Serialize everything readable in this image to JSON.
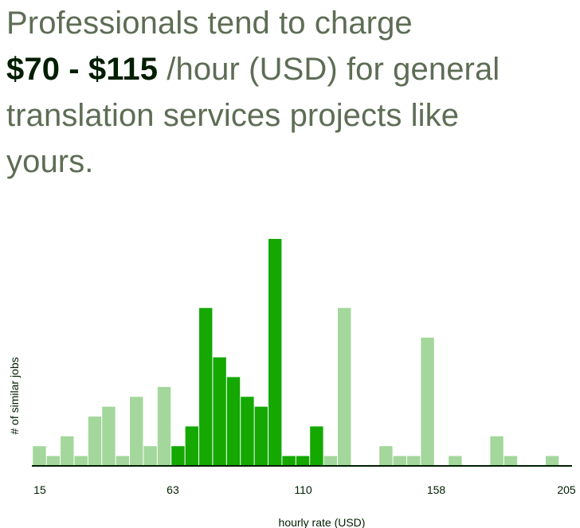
{
  "headline": {
    "line1": "Professionals tend to charge",
    "range": "$70 - $115",
    "rest1": " /hour (USD) for general",
    "line3": "translation services projects like",
    "line4": "yours."
  },
  "colors": {
    "in_range": "#14a800",
    "out_of_range": "#a3d79b",
    "headline_text": "#5e6d55",
    "range_text": "#001e00",
    "axis": "#001e00"
  },
  "chart_data": {
    "type": "bar",
    "title": "",
    "xlabel": "hourly rate (USD)",
    "ylabel": "# of similar jobs",
    "x_ticks": [
      15,
      63,
      110,
      158,
      205
    ],
    "xlim": [
      13,
      207
    ],
    "ylim": [
      0,
      23
    ],
    "highlight_range": [
      70,
      115
    ],
    "bin_width": 5,
    "bins": [
      {
        "x": 15,
        "count": 2,
        "in_range": false
      },
      {
        "x": 20,
        "count": 1,
        "in_range": false
      },
      {
        "x": 25,
        "count": 3,
        "in_range": false
      },
      {
        "x": 30,
        "count": 1,
        "in_range": false
      },
      {
        "x": 35,
        "count": 5,
        "in_range": false
      },
      {
        "x": 40,
        "count": 6,
        "in_range": false
      },
      {
        "x": 45,
        "count": 1,
        "in_range": false
      },
      {
        "x": 50,
        "count": 7,
        "in_range": false
      },
      {
        "x": 55,
        "count": 2,
        "in_range": false
      },
      {
        "x": 60,
        "count": 8,
        "in_range": false
      },
      {
        "x": 65,
        "count": 2,
        "in_range": true
      },
      {
        "x": 70,
        "count": 4,
        "in_range": true
      },
      {
        "x": 75,
        "count": 16,
        "in_range": true
      },
      {
        "x": 80,
        "count": 11,
        "in_range": true
      },
      {
        "x": 85,
        "count": 9,
        "in_range": true
      },
      {
        "x": 90,
        "count": 7,
        "in_range": true
      },
      {
        "x": 95,
        "count": 6,
        "in_range": true
      },
      {
        "x": 100,
        "count": 23,
        "in_range": true
      },
      {
        "x": 105,
        "count": 1,
        "in_range": true
      },
      {
        "x": 110,
        "count": 1,
        "in_range": true
      },
      {
        "x": 115,
        "count": 4,
        "in_range": true
      },
      {
        "x": 120,
        "count": 1,
        "in_range": false
      },
      {
        "x": 125,
        "count": 16,
        "in_range": false
      },
      {
        "x": 130,
        "count": 0,
        "in_range": false
      },
      {
        "x": 140,
        "count": 2,
        "in_range": false
      },
      {
        "x": 145,
        "count": 1,
        "in_range": false
      },
      {
        "x": 150,
        "count": 1,
        "in_range": false
      },
      {
        "x": 155,
        "count": 13,
        "in_range": false
      },
      {
        "x": 165,
        "count": 1,
        "in_range": false
      },
      {
        "x": 180,
        "count": 3,
        "in_range": false
      },
      {
        "x": 185,
        "count": 1,
        "in_range": false
      },
      {
        "x": 200,
        "count": 1,
        "in_range": false
      }
    ]
  }
}
